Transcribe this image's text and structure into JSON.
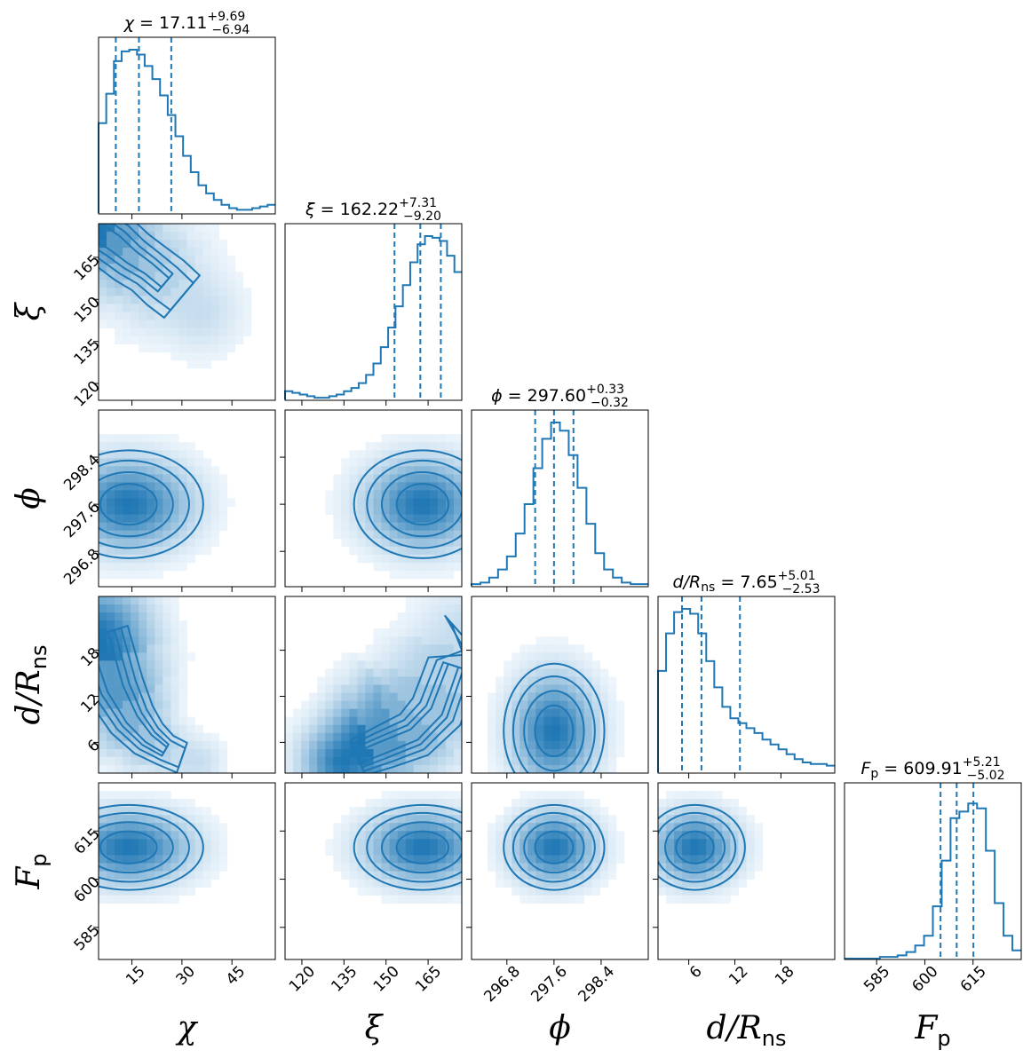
{
  "chart_data": {
    "type": "corner",
    "color": "#1f77b4",
    "parameters": [
      {
        "key": "chi",
        "symbol": "χ",
        "subscript": "",
        "range": [
          5,
          58
        ],
        "ticks": [
          15,
          30,
          45
        ],
        "tick_labels": [
          "15",
          "30",
          "45"
        ],
        "title": {
          "prefix": "χ = ",
          "value": "17.11",
          "upper": "+9.69",
          "lower": "−6.94"
        },
        "quantiles": [
          10.17,
          17.11,
          26.8
        ]
      },
      {
        "key": "xi",
        "symbol": "ξ",
        "subscript": "",
        "range": [
          114,
          177
        ],
        "ticks": [
          120,
          135,
          150,
          165
        ],
        "tick_labels": [
          "120",
          "135",
          "150",
          "165"
        ],
        "title": {
          "prefix": "ξ = ",
          "value": "162.22",
          "upper": "+7.31",
          "lower": "−9.20"
        },
        "quantiles": [
          153.02,
          162.22,
          169.53
        ]
      },
      {
        "key": "phi",
        "symbol": "ϕ",
        "subscript": "",
        "range": [
          296.2,
          299.2
        ],
        "ticks": [
          296.8,
          297.6,
          298.4
        ],
        "tick_labels": [
          "296.8",
          "297.6",
          "298.4"
        ],
        "title": {
          "prefix": "ϕ = ",
          "value": "297.60",
          "upper": "+0.33",
          "lower": "−0.32"
        },
        "quantiles": [
          297.28,
          297.6,
          297.93
        ]
      },
      {
        "key": "d",
        "symbol": "d/R",
        "subscript": "ns",
        "range": [
          2,
          25
        ],
        "ticks": [
          6,
          12,
          18
        ],
        "tick_labels": [
          "6",
          "12",
          "18"
        ],
        "title": {
          "prefix": "d/R",
          "sub": "ns",
          "suffix": " = ",
          "value": "7.65",
          "upper": "+5.01",
          "lower": "−2.53"
        },
        "quantiles": [
          5.12,
          7.65,
          12.66
        ]
      },
      {
        "key": "Fp",
        "symbol": "F",
        "subscript": "p",
        "range": [
          575,
          630
        ],
        "ticks": [
          585,
          600,
          615
        ],
        "tick_labels": [
          "585",
          "600",
          "615"
        ],
        "title": {
          "prefix": "F",
          "sub": "p",
          "suffix": " = ",
          "value": "609.91",
          "upper": "+5.21",
          "lower": "−5.02"
        },
        "quantiles": [
          604.89,
          609.91,
          615.12
        ]
      }
    ],
    "histograms": {
      "chi": [
        0.55,
        0.73,
        0.93,
        0.99,
        1.0,
        0.97,
        0.9,
        0.82,
        0.72,
        0.6,
        0.47,
        0.35,
        0.25,
        0.17,
        0.12,
        0.08,
        0.05,
        0.03,
        0.02,
        0.02,
        0.03,
        0.04,
        0.05
      ],
      "xi": [
        0.05,
        0.04,
        0.03,
        0.02,
        0.01,
        0.01,
        0.02,
        0.03,
        0.05,
        0.07,
        0.1,
        0.15,
        0.22,
        0.32,
        0.44,
        0.57,
        0.7,
        0.84,
        0.95,
        1.0,
        0.99,
        0.97,
        0.88,
        0.78
      ],
      "phi": [
        0.01,
        0.02,
        0.05,
        0.1,
        0.18,
        0.32,
        0.5,
        0.72,
        0.9,
        1.0,
        0.95,
        0.8,
        0.6,
        0.38,
        0.2,
        0.1,
        0.05,
        0.02,
        0.01,
        0.01
      ],
      "d": [
        0.62,
        0.85,
        0.98,
        1.0,
        0.97,
        0.85,
        0.68,
        0.52,
        0.4,
        0.33,
        0.3,
        0.27,
        0.24,
        0.2,
        0.17,
        0.14,
        0.11,
        0.08,
        0.06,
        0.05,
        0.05,
        0.04
      ],
      "Fp": [
        0.0,
        0.0,
        0.0,
        0.0,
        0.01,
        0.01,
        0.02,
        0.04,
        0.08,
        0.14,
        0.32,
        0.6,
        0.86,
        0.9,
        0.95,
        0.92,
        0.66,
        0.34,
        0.14,
        0.05
      ]
    },
    "joint_2d": [
      {
        "row": 1,
        "col": 0,
        "type": "banana",
        "path": [
          [
            5,
            174
          ],
          [
            10,
            170
          ],
          [
            15,
            165
          ],
          [
            20,
            161
          ],
          [
            25,
            156
          ],
          [
            30,
            151
          ]
        ],
        "widths": [
          10,
          11,
          11,
          11,
          12,
          12
        ],
        "tail": [
          35,
          146
        ]
      },
      {
        "row": 2,
        "col": 0,
        "type": "ellipse",
        "center": [
          14,
          297.6
        ],
        "sx": 11,
        "sy": 0.45,
        "rho": 0.0
      },
      {
        "row": 2,
        "col": 1,
        "type": "ellipse",
        "center": [
          163,
          297.6
        ],
        "sx": 12,
        "sy": 0.45,
        "rho": 0.0
      },
      {
        "row": 3,
        "col": 0,
        "type": "banana",
        "path": [
          [
            5,
            20
          ],
          [
            10,
            13
          ],
          [
            15,
            9
          ],
          [
            20,
            6.5
          ],
          [
            25,
            5
          ],
          [
            30,
            4
          ]
        ],
        "widths": [
          4,
          4,
          3.5,
          3,
          2.5,
          2.5
        ],
        "tail": [
          35,
          3.5
        ]
      },
      {
        "row": 3,
        "col": 1,
        "type": "banana",
        "path": [
          [
            140,
            4
          ],
          [
            150,
            5.5
          ],
          [
            160,
            7
          ],
          [
            168,
            10
          ],
          [
            174,
            16
          ],
          [
            177,
            20
          ]
        ],
        "widths": [
          2.5,
          3,
          3.5,
          4,
          4,
          4
        ],
        "tail": [
          135,
          3.5
        ]
      },
      {
        "row": 3,
        "col": 2,
        "type": "ellipse",
        "center": [
          297.6,
          7.5
        ],
        "sx": 0.42,
        "sy": 4.3,
        "rho": 0.0
      },
      {
        "row": 4,
        "col": 0,
        "type": "ellipse",
        "center": [
          14,
          609.9
        ],
        "sx": 11,
        "sy": 6.5,
        "rho": 0.0
      },
      {
        "row": 4,
        "col": 1,
        "type": "ellipse",
        "center": [
          163,
          609.9
        ],
        "sx": 12,
        "sy": 6.5,
        "rho": 0.0
      },
      {
        "row": 4,
        "col": 2,
        "type": "ellipse",
        "center": [
          297.6,
          609.9
        ],
        "sx": 0.42,
        "sy": 6.5,
        "rho": 0.0
      },
      {
        "row": 4,
        "col": 3,
        "type": "ellipse",
        "center": [
          6.8,
          609.9
        ],
        "sx": 3.2,
        "sy": 6.5,
        "rho": 0.0
      }
    ]
  }
}
